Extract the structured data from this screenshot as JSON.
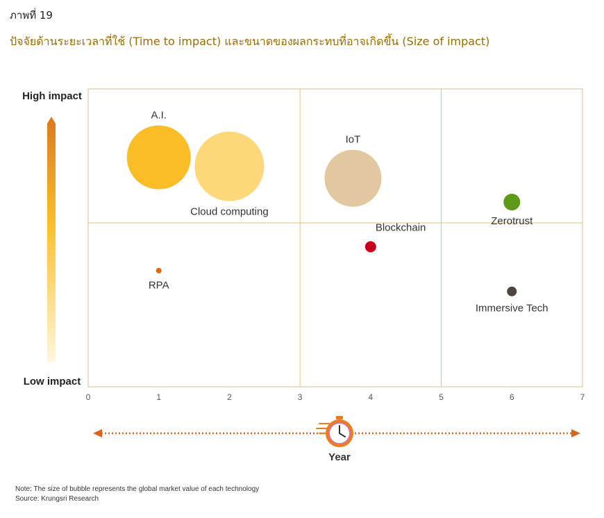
{
  "figure_label": "ภาพที่ 19",
  "title": "ปัจจัยด้านระยะเวลาที่ใช้ (Time to impact) และขนาดของผลกระทบที่อาจเกิดขึ้น (Size of impact)",
  "note": "Note: The size of bubble represents the global market value of each technology",
  "source": "Source: Krungsri Research",
  "colors": {
    "frame": "#d9bf8a",
    "arrow": "#d9641c",
    "gradient_top": "#d97a1e",
    "gradient_mid": "#fbc02d",
    "gradient_bottom": "#fff6dc",
    "clock": "#f07b1a",
    "clock_inner": "#c87aa0"
  },
  "icons": {
    "timer": "stopwatch-icon"
  },
  "chart_data": {
    "type": "bubble",
    "xlim": [
      0,
      7
    ],
    "x_ticks": [
      "0",
      "1",
      "2",
      "3",
      "4",
      "5",
      "6",
      "7"
    ],
    "xlabel": "Year",
    "y_high_label": "High impact",
    "y_low_label": "Low impact",
    "quadrant_x_divisions": [
      3,
      5
    ],
    "quadrant_y_division": 0.55,
    "points": [
      {
        "name": "A.I.",
        "x": 1.0,
        "y": 0.77,
        "size": 46,
        "color": "#fbbd26",
        "label_pos": "above"
      },
      {
        "name": "Cloud computing",
        "x": 2.0,
        "y": 0.74,
        "size": 50,
        "color": "#fdd87a",
        "label_pos": "below"
      },
      {
        "name": "IoT",
        "x": 3.75,
        "y": 0.7,
        "size": 41,
        "color": "#e2c8a0",
        "label_pos": "above"
      },
      {
        "name": "Blockchain",
        "x": 4.0,
        "y": 0.47,
        "size": 8,
        "color": "#c8001e",
        "label_pos": "above-right"
      },
      {
        "name": "Zerotrust",
        "x": 6.0,
        "y": 0.62,
        "size": 12,
        "color": "#5e9a18",
        "label_pos": "below"
      },
      {
        "name": "RPA",
        "x": 1.0,
        "y": 0.39,
        "size": 4,
        "color": "#e8650e",
        "label_pos": "below"
      },
      {
        "name": "Immersive Tech",
        "x": 6.0,
        "y": 0.32,
        "size": 7,
        "color": "#4e4440",
        "label_pos": "below"
      }
    ]
  }
}
